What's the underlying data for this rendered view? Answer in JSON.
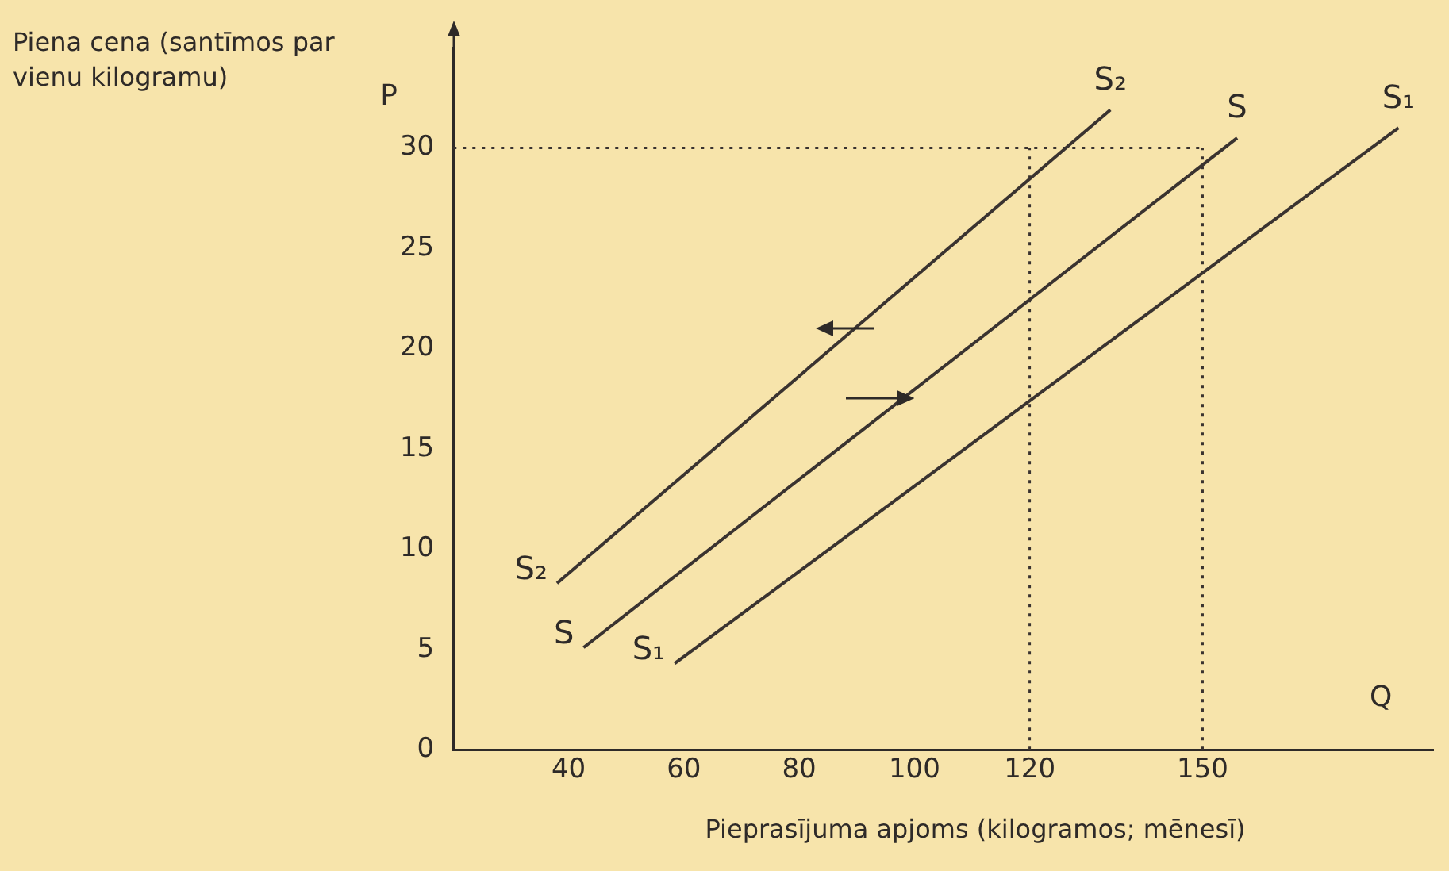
{
  "chart_data": {
    "type": "line",
    "xlabel": "Pieprasījuma apjoms (kilogramos; mēnesī)",
    "ylabel": "Piena cena (santīmos par vienu kilogramu)",
    "annotations": [
      "P",
      "Q"
    ],
    "series": [
      {
        "name": "S₂",
        "color": "#3a3330",
        "x": [
          38,
          134
        ],
        "values": [
          8.3,
          31.9
        ]
      },
      {
        "name": "S",
        "color": "#3a3330",
        "x": [
          42.6,
          156
        ],
        "values": [
          5.1,
          30.5
        ]
      },
      {
        "name": "S₁",
        "color": "#3a3330",
        "x": [
          58.4,
          184
        ],
        "values": [
          4.3,
          31
        ]
      }
    ],
    "ref_lines": [
      {
        "axis": "y",
        "value": 30,
        "color": "#3a3330",
        "line_style": "dotted"
      },
      {
        "axis": "x",
        "value": 120,
        "color": "#3a3330",
        "line_style": "dotted"
      },
      {
        "axis": "x",
        "value": 150,
        "color": "#3a3330",
        "line_style": "dotted"
      }
    ],
    "xlim": [
      20,
      190
    ],
    "xticks": [
      40,
      60,
      80,
      100,
      120,
      150
    ],
    "ylim": [
      0,
      35
    ],
    "yticks": [
      0,
      5,
      10,
      15,
      20,
      25,
      30
    ],
    "grid": false,
    "legend": false,
    "marker": "none",
    "line_style": "solid"
  }
}
